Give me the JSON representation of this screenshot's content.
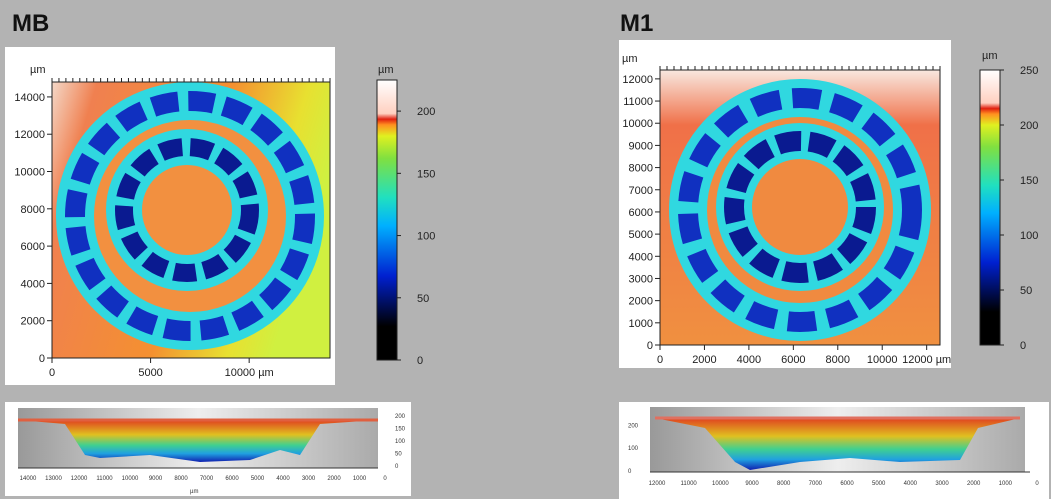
{
  "chart_data": [
    {
      "type": "heatmap",
      "title": "MB",
      "x_unit": "µm",
      "y_unit": "µm",
      "colorbar_unit": "µm",
      "xlim": [
        0,
        14100
      ],
      "ylim": [
        0,
        14800
      ],
      "x_ticks": [
        "0",
        "5000",
        "10000 µm"
      ],
      "x_tick_values": [
        0,
        5000,
        10000
      ],
      "y_ticks": [
        "0",
        "2000",
        "4000",
        "6000",
        "8000",
        "10000",
        "12000",
        "14000"
      ],
      "colorbar": {
        "range": [
          0,
          225
        ],
        "ticks": [
          "0",
          "50",
          "100",
          "150",
          "200"
        ],
        "tick_values": [
          0,
          50,
          100,
          150,
          200
        ]
      },
      "profile_3d": {
        "x_label": "µm",
        "x_ticks": [
          "14000",
          "13000",
          "12000",
          "11000",
          "10000",
          "9000",
          "8000",
          "7000",
          "6000",
          "5000",
          "4000",
          "3000",
          "2000",
          "1000",
          "0"
        ],
        "z_ticks": [
          "0",
          "50",
          "100",
          "150",
          "200"
        ]
      }
    },
    {
      "type": "heatmap",
      "title": "M1",
      "x_unit": "µm",
      "y_unit": "µm",
      "colorbar_unit": "µm",
      "xlim": [
        0,
        12600
      ],
      "ylim": [
        0,
        12400
      ],
      "x_ticks": [
        "0",
        "2000",
        "4000",
        "6000",
        "8000",
        "10000",
        "12000 µm"
      ],
      "x_tick_values": [
        0,
        2000,
        4000,
        6000,
        8000,
        10000,
        12000
      ],
      "y_ticks": [
        "0",
        "1000",
        "2000",
        "3000",
        "4000",
        "5000",
        "6000",
        "7000",
        "8000",
        "9000",
        "10000",
        "11000",
        "12000"
      ],
      "colorbar": {
        "range": [
          0,
          250
        ],
        "ticks": [
          "0",
          "50",
          "100",
          "150",
          "200",
          "250"
        ],
        "tick_values": [
          0,
          50,
          100,
          150,
          200,
          250
        ]
      },
      "profile_3d": {
        "x_label": "µm",
        "x_ticks": [
          "12000",
          "11000",
          "10000",
          "9000",
          "8000",
          "7000",
          "6000",
          "5000",
          "4000",
          "3000",
          "2000",
          "1000",
          "0"
        ],
        "z_ticks": [
          "0",
          "100",
          "200"
        ]
      }
    }
  ]
}
